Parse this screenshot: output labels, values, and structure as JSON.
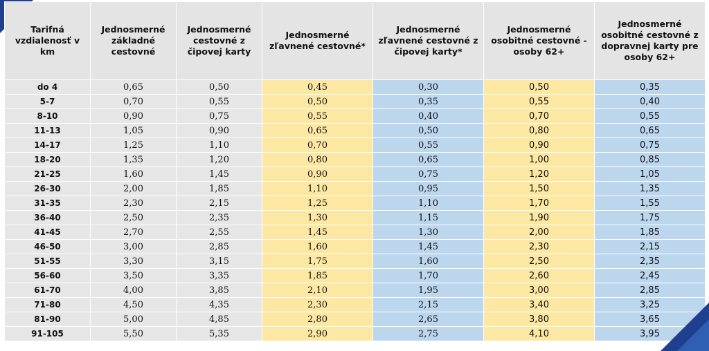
{
  "headers": [
    "Tarifná vzdialenosť v km",
    "Jednosmerné základné cestovné",
    "Jednosmerné cestovné z čipovej karty",
    "Jednosmerné zľavnené cestovné*",
    "Jednosmerné zľavnené cestovné z čipovej karty*",
    "Jednosmerné osobitné cestovné - osoby 62+",
    "Jednosmerné osobitné cestovné z dopravnej karty pre osoby 62+"
  ],
  "colors": {
    "header_bg": "#e4e4e4",
    "row_bg": "#e6e6e6",
    "yellow": "#fde8a3",
    "blue": "#bcd6ee",
    "corner": "#1f3f8f"
  },
  "rows": [
    [
      "do 4",
      "0,65",
      "0,50",
      "0,45",
      "0,30",
      "0,50",
      "0,35"
    ],
    [
      "5-7",
      "0,70",
      "0,55",
      "0,50",
      "0,35",
      "0,55",
      "0,40"
    ],
    [
      "8-10",
      "0,90",
      "0,75",
      "0,55",
      "0,40",
      "0,70",
      "0,55"
    ],
    [
      "11-13",
      "1,05",
      "0,90",
      "0,65",
      "0,50",
      "0,80",
      "0,65"
    ],
    [
      "14-17",
      "1,25",
      "1,10",
      "0,70",
      "0,55",
      "0,90",
      "0,75"
    ],
    [
      "18-20",
      "1,35",
      "1,20",
      "0,80",
      "0,65",
      "1,00",
      "0,85"
    ],
    [
      "21-25",
      "1,60",
      "1,45",
      "0,90",
      "0,75",
      "1,20",
      "1,05"
    ],
    [
      "26-30",
      "2,00",
      "1,85",
      "1,10",
      "0,95",
      "1,50",
      "1,35"
    ],
    [
      "31-35",
      "2,30",
      "2,15",
      "1,25",
      "1,10",
      "1,70",
      "1,55"
    ],
    [
      "36-40",
      "2,50",
      "2,35",
      "1,30",
      "1,15",
      "1,90",
      "1,75"
    ],
    [
      "41-45",
      "2,70",
      "2,55",
      "1,45",
      "1,30",
      "2,00",
      "1,85"
    ],
    [
      "46-50",
      "3,00",
      "2,85",
      "1,60",
      "1,45",
      "2,30",
      "2,15"
    ],
    [
      "51-55",
      "3,30",
      "3,15",
      "1,75",
      "1,60",
      "2,50",
      "2,35"
    ],
    [
      "56-60",
      "3,50",
      "3,35",
      "1,85",
      "1,70",
      "2,60",
      "2,45"
    ],
    [
      "61-70",
      "4,00",
      "3,85",
      "2,10",
      "1,95",
      "3,00",
      "2,85"
    ],
    [
      "71-80",
      "4,50",
      "4,35",
      "2,30",
      "2,15",
      "3,40",
      "3,25"
    ],
    [
      "81-90",
      "5,00",
      "4,85",
      "2,80",
      "2,65",
      "3,80",
      "3,65"
    ],
    [
      "91-105",
      "5,50",
      "5,35",
      "2,90",
      "2,75",
      "4,10",
      "3,95"
    ]
  ]
}
